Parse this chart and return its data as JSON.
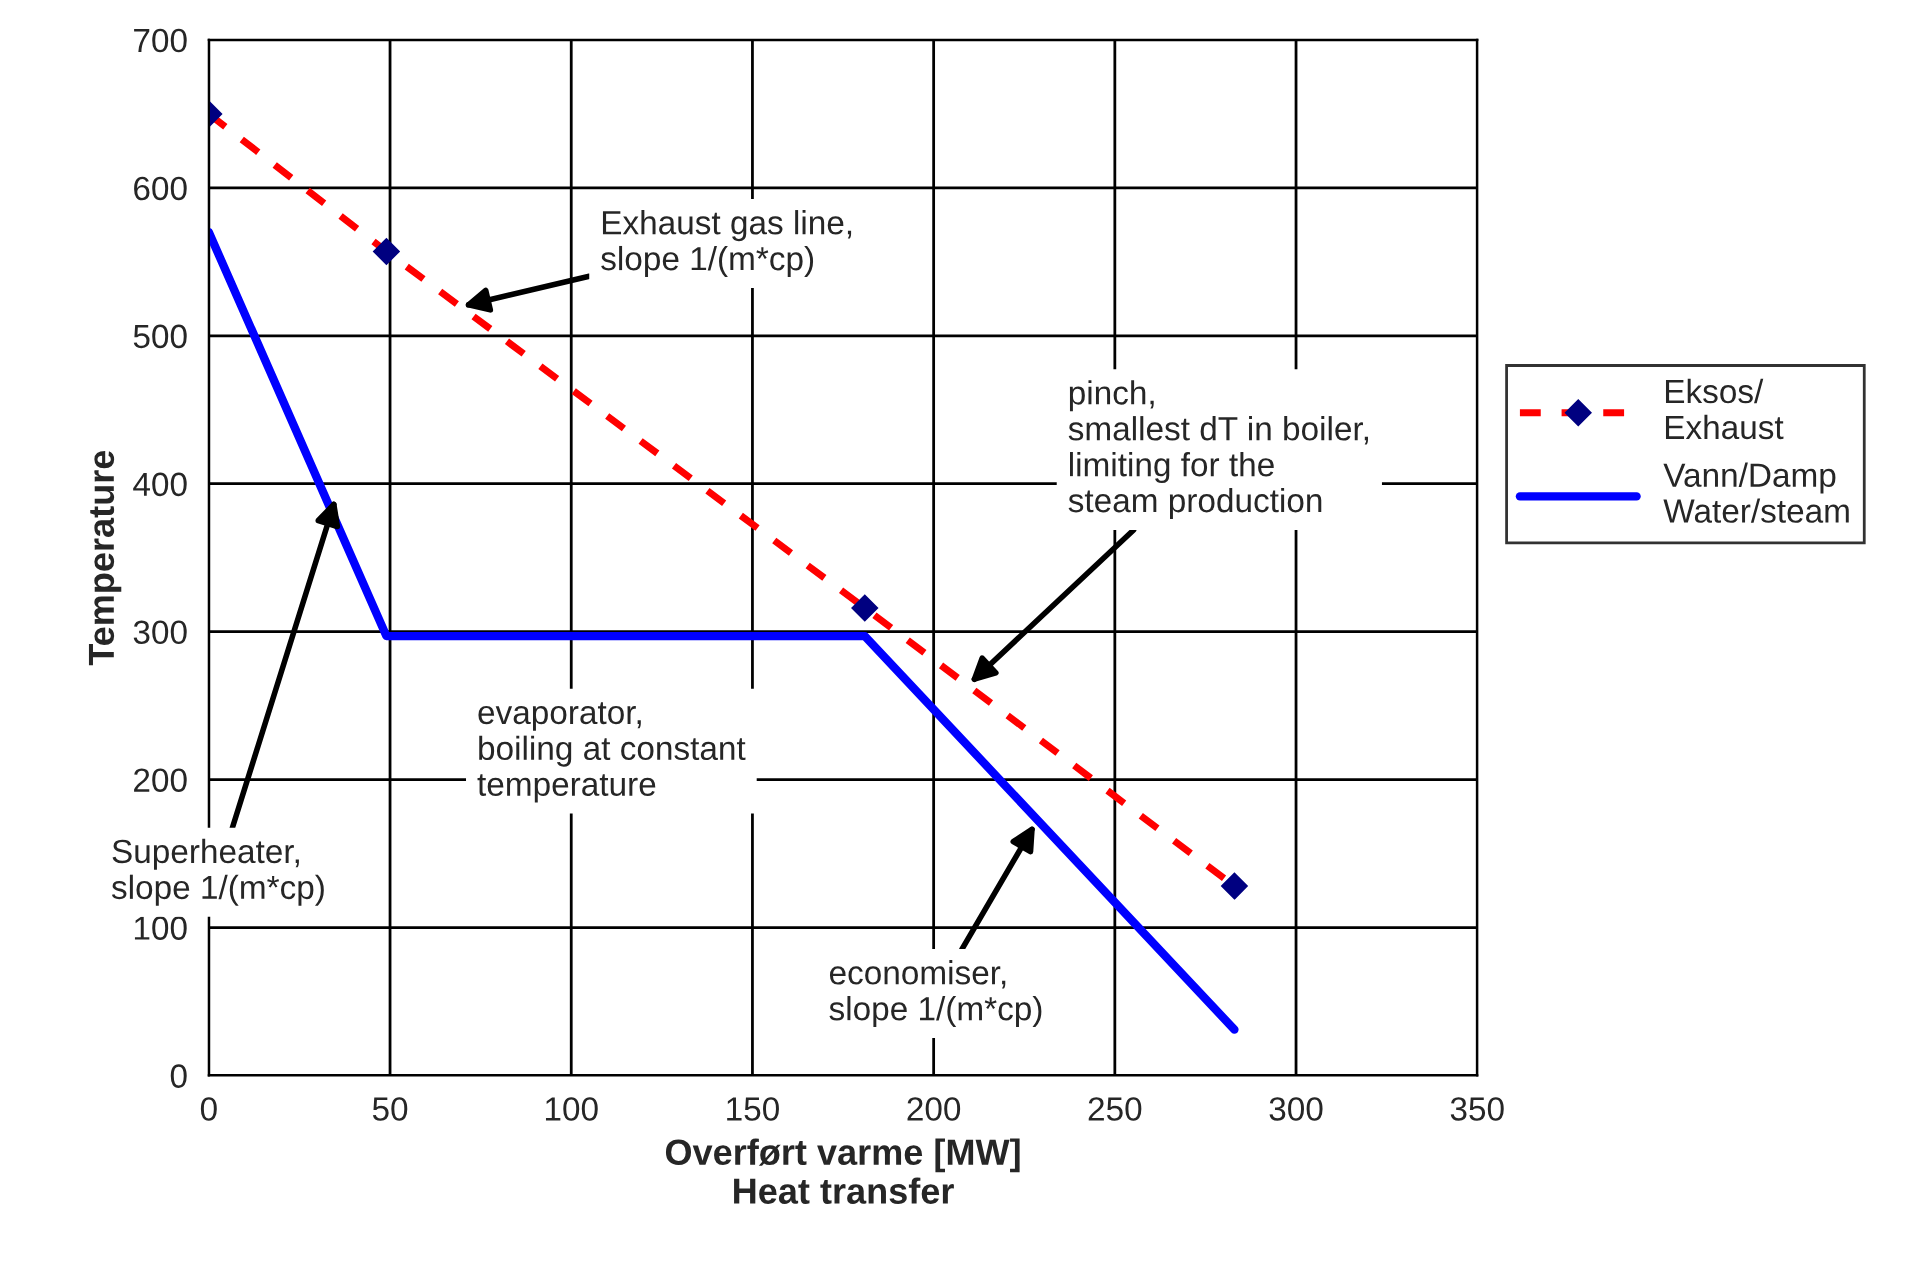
{
  "chart_data": {
    "type": "line",
    "xlabel": "Overført varme [MW]\nHeat transfer",
    "ylabel": "Temperature",
    "xlim": [
      0,
      350
    ],
    "xticks": [
      0,
      50,
      100,
      150,
      200,
      250,
      300,
      350
    ],
    "ylim": [
      0,
      700
    ],
    "yticks": [
      0,
      100,
      200,
      300,
      400,
      500,
      600,
      700
    ],
    "grid": true,
    "legend": "right",
    "series": [
      {
        "name": "Eksos/\nExhaust",
        "color": "#ff0000",
        "marker": "diamond",
        "line_style": "dashed",
        "x": [
          0,
          49,
          181,
          283
        ],
        "values": [
          650,
          557,
          316,
          128
        ]
      },
      {
        "name": "Vann/Damp\nWater/steam",
        "color": "#0000ff",
        "marker": "none",
        "line_style": "solid",
        "x": [
          0,
          49,
          181,
          283
        ],
        "values": [
          570,
          297,
          297,
          31
        ]
      }
    ],
    "annotations": [
      {
        "text": "Exhaust gas line,\nslope 1/(m*cp)",
        "x": 70,
        "y": 520
      },
      {
        "text": "Superheater,\nslope 1/(m*cp)",
        "x": 35,
        "y": 390
      },
      "evaporator,\nboiling at constant\ntemperature",
      {
        "text": "pinch,\nsmallest dT in boiler,\nlimiting for the\nsteam production",
        "x": 210,
        "y": 265
      },
      {
        "text": "economiser,\nslope 1/(m*cp)",
        "x": 228,
        "y": 170
      }
    ]
  }
}
